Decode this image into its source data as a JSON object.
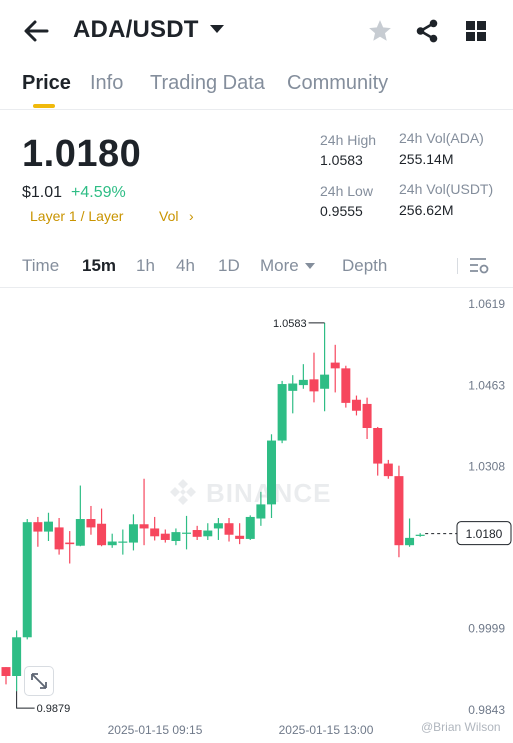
{
  "header": {
    "pair": "ADA/USDT",
    "icons": [
      "back-arrow-icon",
      "caret-down-icon",
      "star-icon",
      "share-icon",
      "grid-icon"
    ]
  },
  "tabs": [
    {
      "label": "Price",
      "active": true
    },
    {
      "label": "Info",
      "active": false
    },
    {
      "label": "Trading Data",
      "active": false
    },
    {
      "label": "Community",
      "active": false
    }
  ],
  "ticker": {
    "price": "1.0180",
    "usd_price": "$1.01",
    "change": "+4.59%",
    "tag1": "Layer 1 / Layer",
    "tag2": "Vol",
    "tag_caret": "›"
  },
  "stats": {
    "high_label": "24h High",
    "high_value": "1.0583",
    "low_label": "24h Low",
    "low_value": "0.9555",
    "vol_base_label": "24h Vol(ADA)",
    "vol_base_value": "255.14M",
    "vol_quote_label": "24h Vol(USDT)",
    "vol_quote_value": "256.62M"
  },
  "timeframes": {
    "items": [
      {
        "label": "Time",
        "active": false
      },
      {
        "label": "15m",
        "active": true
      },
      {
        "label": "1h",
        "active": false
      },
      {
        "label": "4h",
        "active": false
      },
      {
        "label": "1D",
        "active": false
      },
      {
        "label": "More",
        "active": false
      },
      {
        "label": "Depth",
        "active": false
      }
    ]
  },
  "chart_data": {
    "type": "candlestick",
    "y_ticks": [
      "1.0619",
      "1.0463",
      "1.0308",
      "1.0180",
      "0.9999",
      "0.9843"
    ],
    "x_ticks": [
      "2025-01-15 09:15",
      "2025-01-15 13:00"
    ],
    "ylim": [
      0.9843,
      1.0619
    ],
    "current_price": "1.0180",
    "max_label": "1.0583",
    "min_label": "0.9879",
    "up_color": "#2ebd85",
    "down_color": "#f6465d",
    "candles": [
      {
        "o": 0.9925,
        "h": 0.9925,
        "l": 0.9892,
        "c": 0.9908
      },
      {
        "o": 0.9908,
        "h": 0.9995,
        "l": 0.9879,
        "c": 0.9982
      },
      {
        "o": 0.9982,
        "h": 1.0208,
        "l": 0.9978,
        "c": 1.0202
      },
      {
        "o": 1.0202,
        "h": 1.0212,
        "l": 1.0155,
        "c": 1.0184
      },
      {
        "o": 1.0184,
        "h": 1.022,
        "l": 1.0166,
        "c": 1.0203
      },
      {
        "o": 1.0192,
        "h": 1.021,
        "l": 1.014,
        "c": 1.015
      },
      {
        "o": 1.0163,
        "h": 1.0185,
        "l": 1.0123,
        "c": 1.016
      },
      {
        "o": 1.0157,
        "h": 1.0272,
        "l": 1.0156,
        "c": 1.0208
      },
      {
        "o": 1.0208,
        "h": 1.0233,
        "l": 1.0178,
        "c": 1.0192
      },
      {
        "o": 1.0199,
        "h": 1.0228,
        "l": 1.0156,
        "c": 1.0158
      },
      {
        "o": 1.0158,
        "h": 1.018,
        "l": 1.0153,
        "c": 1.0165
      },
      {
        "o": 1.0163,
        "h": 1.0188,
        "l": 1.014,
        "c": 1.0165
      },
      {
        "o": 1.0163,
        "h": 1.0217,
        "l": 1.0148,
        "c": 1.0198
      },
      {
        "o": 1.0198,
        "h": 1.0285,
        "l": 1.0158,
        "c": 1.019
      },
      {
        "o": 1.019,
        "h": 1.0212,
        "l": 1.0167,
        "c": 1.0175
      },
      {
        "o": 1.018,
        "h": 1.0188,
        "l": 1.0163,
        "c": 1.0168
      },
      {
        "o": 1.0166,
        "h": 1.019,
        "l": 1.0158,
        "c": 1.0183
      },
      {
        "o": 1.018,
        "h": 1.0214,
        "l": 1.015,
        "c": 1.0182
      },
      {
        "o": 1.0187,
        "h": 1.0195,
        "l": 1.0168,
        "c": 1.0174
      },
      {
        "o": 1.0175,
        "h": 1.02,
        "l": 1.0168,
        "c": 1.0186
      },
      {
        "o": 1.019,
        "h": 1.021,
        "l": 1.0168,
        "c": 1.02
      },
      {
        "o": 1.02,
        "h": 1.021,
        "l": 1.0165,
        "c": 1.0178
      },
      {
        "o": 1.0176,
        "h": 1.02,
        "l": 1.016,
        "c": 1.017
      },
      {
        "o": 1.017,
        "h": 1.0215,
        "l": 1.0168,
        "c": 1.0212
      },
      {
        "o": 1.0209,
        "h": 1.026,
        "l": 1.0195,
        "c": 1.0236
      },
      {
        "o": 1.0236,
        "h": 1.037,
        "l": 1.021,
        "c": 1.0358
      },
      {
        "o": 1.0358,
        "h": 1.0472,
        "l": 1.0353,
        "c": 1.0466
      },
      {
        "o": 1.0453,
        "h": 1.0483,
        "l": 1.041,
        "c": 1.0467
      },
      {
        "o": 1.0464,
        "h": 1.0504,
        "l": 1.0457,
        "c": 1.0474
      },
      {
        "o": 1.0475,
        "h": 1.0526,
        "l": 1.0431,
        "c": 1.0452
      },
      {
        "o": 1.0457,
        "h": 1.0583,
        "l": 1.0414,
        "c": 1.0484
      },
      {
        "o": 1.0507,
        "h": 1.0541,
        "l": 1.045,
        "c": 1.0496
      },
      {
        "o": 1.0496,
        "h": 1.0501,
        "l": 1.0421,
        "c": 1.043
      },
      {
        "o": 1.0436,
        "h": 1.0444,
        "l": 1.0406,
        "c": 1.0415
      },
      {
        "o": 1.0428,
        "h": 1.044,
        "l": 1.0361,
        "c": 1.0382
      },
      {
        "o": 1.0382,
        "h": 1.0384,
        "l": 1.0291,
        "c": 1.0314
      },
      {
        "o": 1.0314,
        "h": 1.0321,
        "l": 1.0285,
        "c": 1.029
      },
      {
        "o": 1.029,
        "h": 1.031,
        "l": 1.0135,
        "c": 1.0158
      },
      {
        "o": 1.0158,
        "h": 1.0209,
        "l": 1.0155,
        "c": 1.0172
      },
      {
        "o": 1.0178,
        "h": 1.0181,
        "l": 1.0174,
        "c": 1.0178
      }
    ]
  },
  "watermark": {
    "logo": "BINANCE",
    "user": "@Brian Wilson"
  }
}
